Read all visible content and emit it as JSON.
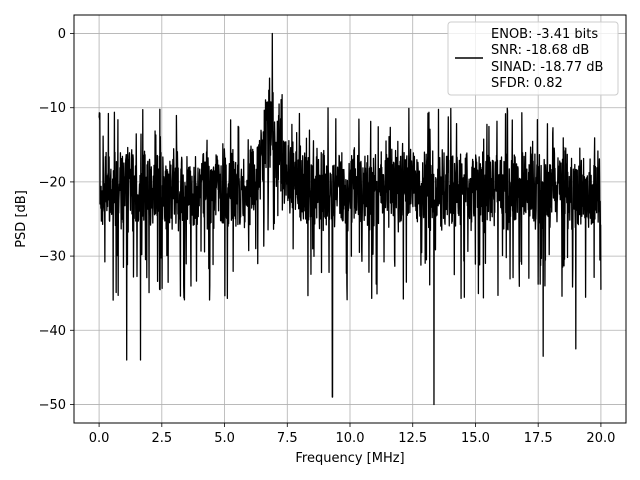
{
  "chart_data": {
    "type": "line",
    "title": "",
    "xlabel": "Frequency [MHz]",
    "ylabel": "PSD [dB]",
    "xlim": [
      -1.0,
      21.0
    ],
    "ylim": [
      -52.5,
      2.5
    ],
    "xticks": [
      0.0,
      2.5,
      5.0,
      7.5,
      10.0,
      12.5,
      15.0,
      17.5,
      20.0
    ],
    "xtick_labels": [
      "0.0",
      "2.5",
      "5.0",
      "7.5",
      "10.0",
      "12.5",
      "15.0",
      "17.5",
      "20.0"
    ],
    "yticks": [
      0,
      -10,
      -20,
      -30,
      -40,
      -50
    ],
    "ytick_labels": [
      "0",
      "−10",
      "−20",
      "−30",
      "−40",
      "−50"
    ],
    "grid": true,
    "legend_position": "top-right",
    "legend_lines": [
      "ENOB: -3.41 bits",
      "SNR: -18.68 dB",
      "SINAD: -18.77 dB",
      "SFDR: 0.82"
    ],
    "series": [
      {
        "color": "#000000",
        "x": [
          0.0,
          20.0
        ],
        "y": [
          -10,
          -20
        ],
        "noise_floor_db": -21,
        "noise_spread_db": 6,
        "peak_frequency_mhz": 6.9,
        "peak_db": 0,
        "min_db": -50,
        "dips": [
          [
            1.1,
            -44
          ],
          [
            1.65,
            -44
          ],
          [
            9.3,
            -49
          ],
          [
            13.35,
            -50
          ],
          [
            17.7,
            -43.5
          ],
          [
            19.0,
            -42.5
          ]
        ]
      }
    ]
  }
}
